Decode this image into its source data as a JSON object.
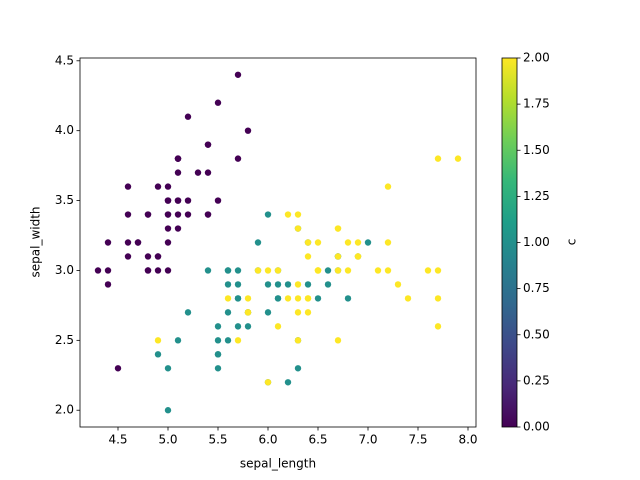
{
  "chart_data": {
    "type": "scatter",
    "x_label": "sepal_length",
    "y_label": "sepal_width",
    "colorbar_label": "c",
    "colormap": "viridis",
    "clim": [
      0,
      2
    ],
    "xlim": [
      4.12,
      8.08
    ],
    "ylim": [
      1.88,
      4.52
    ],
    "xticks": [
      4.5,
      {
        "value": 5,
        "label": "5.0"
      },
      5.5,
      {
        "value": 6,
        "label": "6.0"
      },
      6.5,
      {
        "value": 7,
        "label": "7.0"
      },
      7.5,
      {
        "value": 8,
        "label": "8.0"
      }
    ],
    "yticks": [
      {
        "value": 2,
        "label": "2.0"
      },
      2.5,
      {
        "value": 3,
        "label": "3.0"
      },
      3.5,
      {
        "value": 4,
        "label": "4.0"
      },
      4.5
    ],
    "cticks": [
      {
        "value": 0,
        "label": "0.00"
      },
      {
        "value": 0.25,
        "label": "0.25"
      },
      {
        "value": 0.5,
        "label": "0.50"
      },
      {
        "value": 0.75,
        "label": "0.75"
      },
      {
        "value": 1,
        "label": "1.00"
      },
      {
        "value": 1.25,
        "label": "1.25"
      },
      {
        "value": 1.5,
        "label": "1.50"
      },
      {
        "value": 1.75,
        "label": "1.75"
      },
      {
        "value": 2,
        "label": "2.00"
      }
    ],
    "x": [
      5.1,
      4.9,
      4.7,
      4.6,
      5.0,
      5.4,
      4.6,
      5.0,
      4.4,
      4.9,
      5.4,
      4.8,
      4.8,
      4.3,
      5.8,
      5.7,
      5.4,
      5.1,
      5.7,
      5.1,
      5.4,
      5.1,
      4.6,
      5.1,
      4.8,
      5.0,
      5.0,
      5.2,
      5.2,
      4.7,
      4.8,
      5.4,
      5.2,
      5.5,
      4.9,
      5.0,
      5.5,
      4.9,
      4.4,
      5.1,
      5.0,
      4.5,
      4.4,
      5.0,
      5.1,
      4.8,
      5.1,
      4.6,
      5.3,
      5.0,
      7.0,
      6.4,
      6.9,
      5.5,
      6.5,
      5.7,
      6.3,
      4.9,
      6.6,
      5.2,
      5.0,
      5.9,
      6.0,
      6.1,
      5.6,
      6.7,
      5.6,
      5.8,
      6.2,
      5.6,
      5.9,
      6.1,
      6.3,
      6.1,
      6.4,
      6.6,
      6.8,
      6.7,
      6.0,
      5.7,
      5.5,
      5.5,
      5.8,
      6.0,
      5.4,
      6.0,
      6.7,
      6.3,
      5.6,
      5.5,
      5.5,
      6.1,
      5.8,
      5.0,
      5.6,
      5.7,
      5.7,
      6.2,
      5.1,
      5.7,
      6.3,
      5.8,
      7.1,
      6.3,
      6.5,
      7.6,
      4.9,
      7.3,
      6.7,
      7.2,
      6.5,
      6.4,
      6.8,
      5.7,
      5.8,
      6.4,
      6.5,
      7.7,
      7.7,
      6.0,
      6.9,
      5.6,
      7.7,
      6.3,
      6.7,
      7.2,
      6.2,
      6.1,
      6.4,
      7.2,
      7.4,
      7.9,
      6.4,
      6.3,
      6.1,
      7.7,
      6.3,
      6.4,
      6.0,
      6.9,
      6.7,
      6.9,
      5.8,
      6.8,
      6.7,
      6.7,
      6.3,
      6.5,
      6.2,
      5.9
    ],
    "y": [
      3.5,
      3.0,
      3.2,
      3.1,
      3.6,
      3.9,
      3.4,
      3.4,
      2.9,
      3.1,
      3.7,
      3.4,
      3.0,
      3.0,
      4.0,
      4.4,
      3.9,
      3.5,
      3.8,
      3.8,
      3.4,
      3.7,
      3.6,
      3.3,
      3.4,
      3.0,
      3.4,
      3.5,
      3.4,
      3.2,
      3.1,
      3.4,
      4.1,
      4.2,
      3.1,
      3.2,
      3.5,
      3.6,
      3.0,
      3.4,
      3.5,
      2.3,
      3.2,
      3.5,
      3.8,
      3.0,
      3.8,
      3.2,
      3.7,
      3.3,
      3.2,
      3.2,
      3.1,
      2.3,
      2.8,
      2.8,
      3.3,
      2.4,
      2.9,
      2.7,
      2.0,
      3.0,
      2.2,
      2.9,
      2.9,
      3.1,
      3.0,
      2.7,
      2.2,
      2.5,
      3.2,
      2.8,
      2.5,
      2.8,
      2.9,
      3.0,
      2.8,
      3.0,
      2.9,
      2.6,
      2.4,
      2.4,
      2.7,
      2.7,
      3.0,
      3.4,
      3.1,
      2.3,
      3.0,
      2.5,
      2.6,
      3.0,
      2.6,
      2.3,
      2.7,
      3.0,
      2.9,
      2.9,
      2.5,
      2.8,
      3.3,
      2.7,
      3.0,
      2.9,
      3.0,
      3.0,
      2.5,
      2.9,
      2.5,
      3.6,
      3.2,
      2.7,
      3.0,
      2.5,
      2.8,
      3.2,
      3.0,
      3.8,
      2.6,
      2.2,
      3.2,
      2.8,
      2.8,
      2.7,
      3.3,
      3.2,
      2.8,
      3.0,
      2.8,
      3.0,
      2.8,
      3.8,
      2.8,
      2.8,
      2.6,
      3.0,
      3.4,
      3.1,
      3.0,
      3.1,
      3.1,
      3.1,
      2.7,
      3.2,
      3.3,
      3.0,
      2.5,
      3.0,
      3.4,
      3.0
    ],
    "c": [
      0,
      0,
      0,
      0,
      0,
      0,
      0,
      0,
      0,
      0,
      0,
      0,
      0,
      0,
      0,
      0,
      0,
      0,
      0,
      0,
      0,
      0,
      0,
      0,
      0,
      0,
      0,
      0,
      0,
      0,
      0,
      0,
      0,
      0,
      0,
      0,
      0,
      0,
      0,
      0,
      0,
      0,
      0,
      0,
      0,
      0,
      0,
      0,
      0,
      0,
      1,
      1,
      1,
      1,
      1,
      1,
      1,
      1,
      1,
      1,
      1,
      1,
      1,
      1,
      1,
      1,
      1,
      1,
      1,
      1,
      1,
      1,
      1,
      1,
      1,
      1,
      1,
      1,
      1,
      1,
      1,
      1,
      1,
      1,
      1,
      1,
      1,
      1,
      1,
      1,
      1,
      1,
      1,
      1,
      1,
      1,
      1,
      1,
      1,
      1,
      2,
      2,
      2,
      2,
      2,
      2,
      2,
      2,
      2,
      2,
      2,
      2,
      2,
      2,
      2,
      2,
      2,
      2,
      2,
      2,
      2,
      2,
      2,
      2,
      2,
      2,
      2,
      2,
      2,
      2,
      2,
      2,
      2,
      2,
      2,
      2,
      2,
      2,
      2,
      2,
      2,
      2,
      2,
      2,
      2,
      2,
      2,
      2,
      2,
      2
    ]
  }
}
